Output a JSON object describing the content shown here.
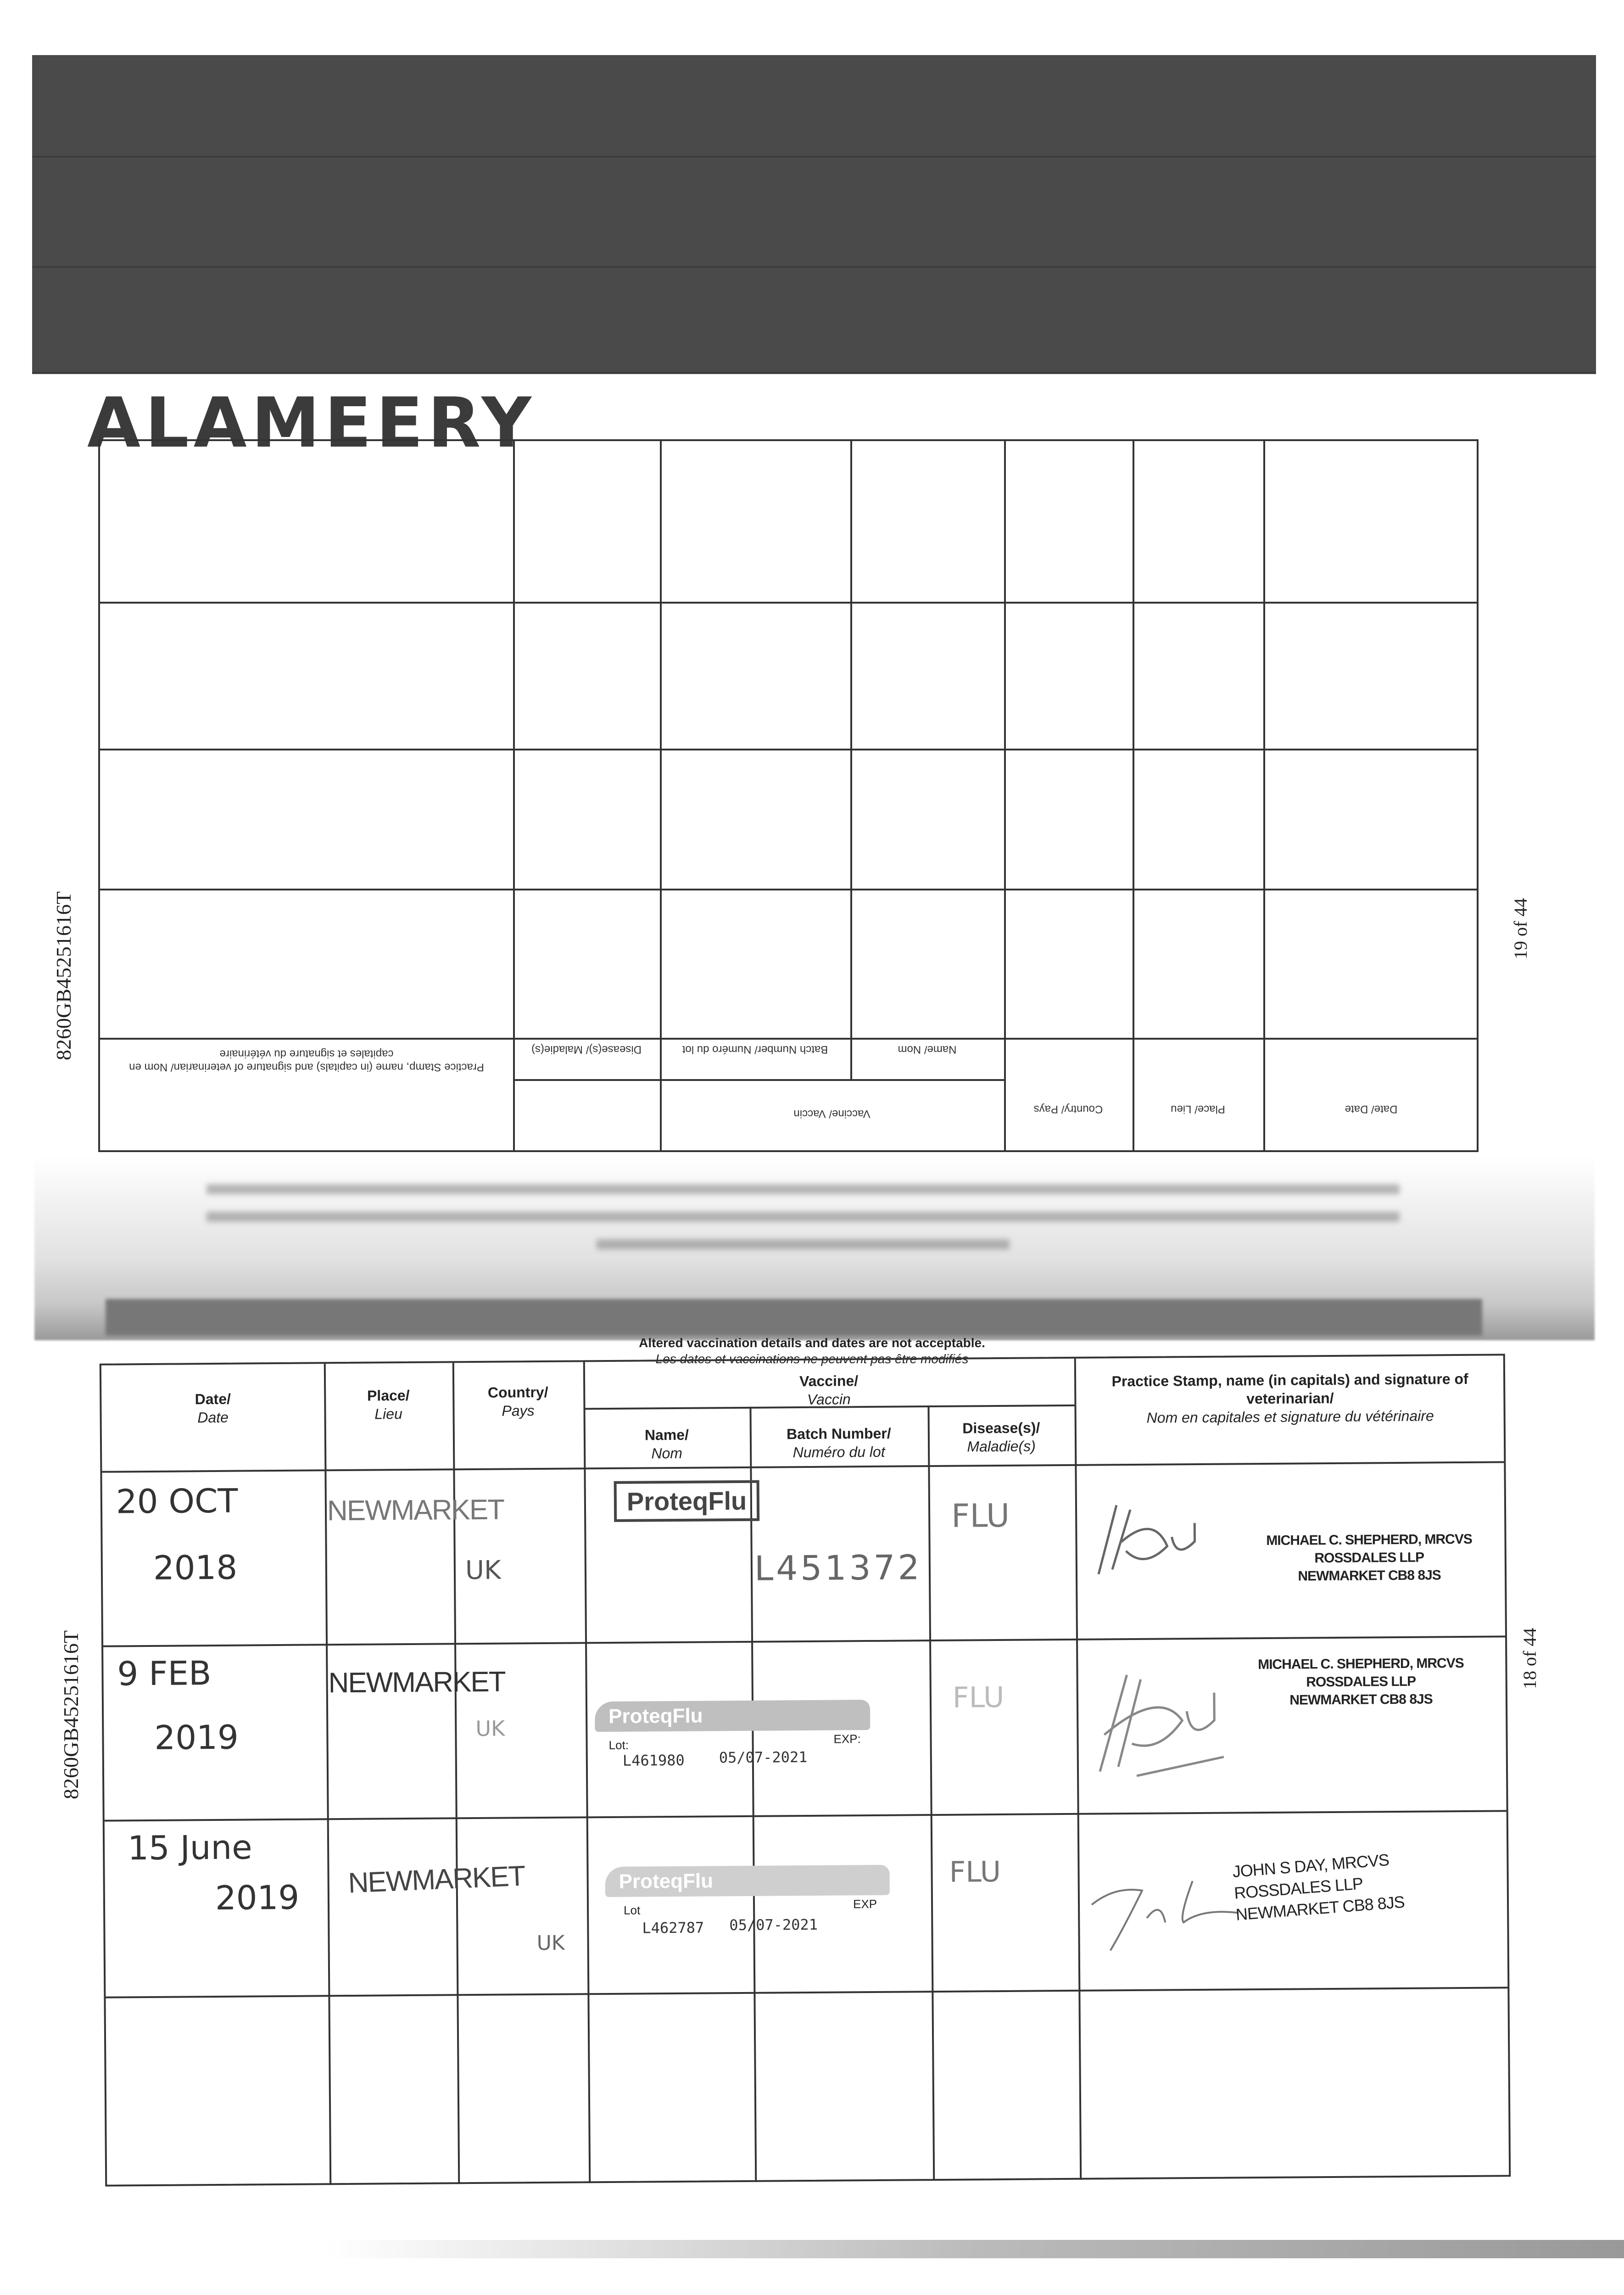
{
  "owner_name_handwritten": "ALAMEERY",
  "passport_number": "8260GB45251616T",
  "top_page": {
    "page_label": "19 of 44",
    "headers_upside_down": {
      "date": "Date/ Date",
      "place": "Place/ Lieu",
      "country": "Country/ Pays",
      "vaccine": "Vaccine/ Vaccin",
      "name": "Name/ Nom",
      "batch": "Batch Number/ Numéro du lot",
      "disease": "Disease(s)/ Maladie(s)",
      "stamp": "Practice Stamp, name (in capitals) and signature of veterinarian/ Nom en capitales et signature du vétérinaire"
    }
  },
  "bottom_page": {
    "page_label": "18 of 44",
    "notice_en": "Altered vaccination details and dates are not acceptable.",
    "notice_fr": "Les dates et vaccinations ne peuvent pas être modifiés",
    "headers": {
      "date": "Date/",
      "date_fr": "Date",
      "place": "Place/",
      "place_fr": "Lieu",
      "country": "Country/",
      "country_fr": "Pays",
      "vaccine": "Vaccine/",
      "vaccine_fr": "Vaccin",
      "name": "Name/",
      "name_fr": "Nom",
      "batch": "Batch Number/",
      "batch_fr": "Numéro du lot",
      "disease": "Disease(s)/",
      "disease_fr": "Maladie(s)",
      "stamp": "Practice Stamp, name (in capitals) and signature of veterinarian/",
      "stamp_fr": "Nom en capitales et signature du vétérinaire"
    },
    "rows": [
      {
        "date_line1": "20 OCT",
        "date_line2": "2018",
        "place": "NEWMARKET",
        "country": "UK",
        "vaccine_name": "ProteqFlu",
        "batch": "L451372",
        "disease": "FLU",
        "vet_line1": "MICHAEL C. SHEPHERD, MRCVS",
        "vet_line2": "ROSSDALES LLP",
        "vet_line3": "NEWMARKET CB8 8JS"
      },
      {
        "date_line1": "9 FEB",
        "date_line2": "2019",
        "place": "NEWMARKET",
        "country": "UK",
        "vaccine_name": "ProteqFlu",
        "lot_label": "Lot:",
        "exp_label": "EXP:",
        "batch": "L461980",
        "expiry": "05/07-2021",
        "disease": "FLU",
        "vet_line1": "MICHAEL C. SHEPHERD, MRCVS",
        "vet_line2": "ROSSDALES LLP",
        "vet_line3": "NEWMARKET CB8 8JS"
      },
      {
        "date_line1": "15 June",
        "date_line2": "2019",
        "place": "NEWMARKET",
        "country": "UK",
        "vaccine_name": "ProteqFlu",
        "lot_label": "Lot",
        "exp_label": "EXP",
        "batch": "L462787",
        "expiry": "05/07-2021",
        "disease": "FLU",
        "vet_line1": "JOHN S DAY, MRCVS",
        "vet_line2": "ROSSDALES LLP",
        "vet_line3": "NEWMARKET CB8 8JS"
      }
    ]
  }
}
